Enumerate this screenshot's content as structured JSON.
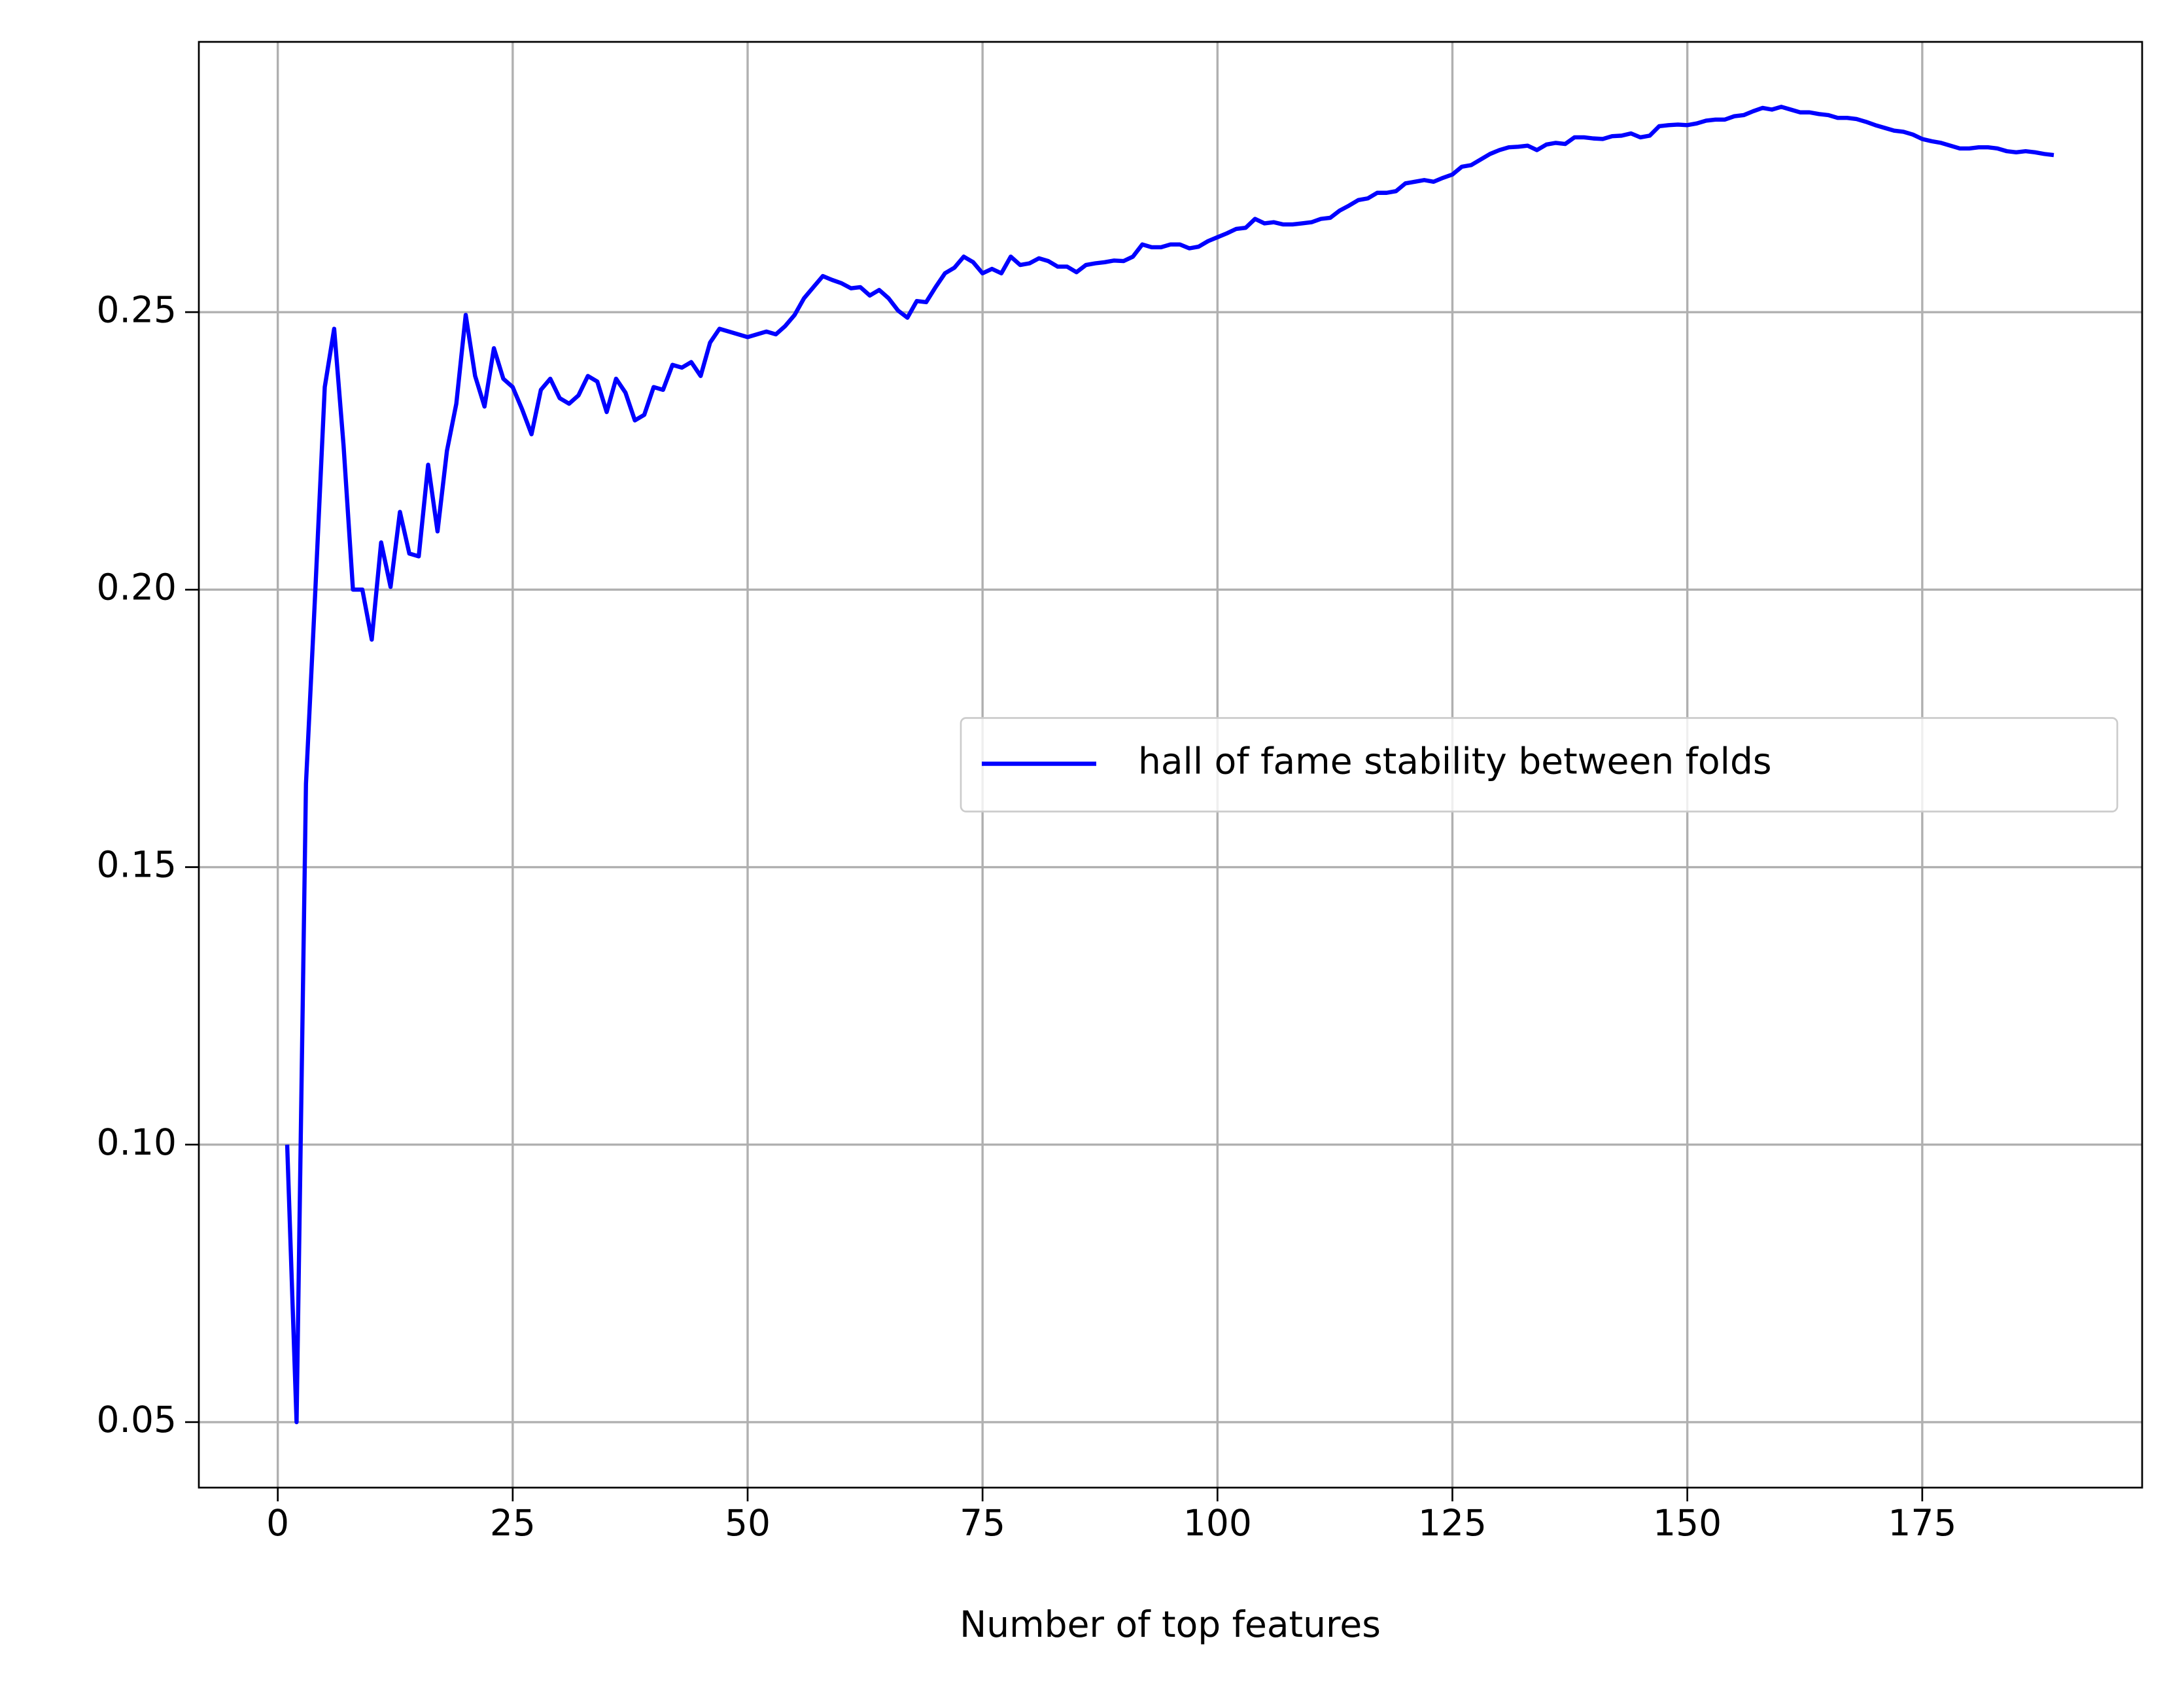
{
  "chart_data": {
    "type": "line",
    "x_label": "Number of top features",
    "x": [
      1,
      2,
      3,
      4,
      5,
      6,
      7,
      8,
      9,
      10,
      11,
      12,
      13,
      14,
      15,
      16,
      17,
      18,
      19,
      20,
      21,
      22,
      23,
      24,
      25,
      26,
      27,
      28,
      29,
      30,
      31,
      32,
      33,
      34,
      35,
      36,
      37,
      38,
      39,
      40,
      41,
      42,
      43,
      44,
      45,
      46,
      47,
      48,
      49,
      50,
      51,
      52,
      53,
      54,
      55,
      56,
      57,
      58,
      59,
      60,
      61,
      62,
      63,
      64,
      65,
      66,
      67,
      68,
      69,
      70,
      71,
      72,
      73,
      74,
      75,
      76,
      77,
      78,
      79,
      80,
      81,
      82,
      83,
      84,
      85,
      86,
      87,
      88,
      89,
      90,
      91,
      92,
      93,
      94,
      95,
      96,
      97,
      98,
      99,
      100,
      101,
      102,
      103,
      104,
      105,
      106,
      107,
      108,
      109,
      110,
      111,
      112,
      113,
      114,
      115,
      116,
      117,
      118,
      119,
      120,
      121,
      122,
      123,
      124,
      125,
      126,
      127,
      128,
      129,
      130,
      131,
      132,
      133,
      134,
      135,
      136,
      137,
      138,
      139,
      140,
      141,
      142,
      143,
      144,
      145,
      146,
      147,
      148,
      149,
      150,
      151,
      152,
      153,
      154,
      155,
      156,
      157,
      158,
      159,
      160,
      161,
      162,
      163,
      164,
      165,
      166,
      167,
      168,
      169,
      170,
      171,
      172,
      173,
      174,
      175,
      176,
      177,
      178,
      179,
      180,
      181,
      182,
      183,
      184,
      185,
      186,
      187,
      188,
      189
    ],
    "series": [
      {
        "name": "hall of fame stability between folds",
        "color": "#0000ff",
        "values": [
          0.1,
          0.05,
          0.165,
          0.2,
          0.2365,
          0.247,
          0.226,
          0.2,
          0.2,
          0.191,
          0.2085,
          0.2005,
          0.214,
          0.2065,
          0.206,
          0.2225,
          0.2105,
          0.225,
          0.2335,
          0.2495,
          0.2385,
          0.233,
          0.2435,
          0.238,
          0.2365,
          0.2325,
          0.228,
          0.236,
          0.238,
          0.2345,
          0.2335,
          0.235,
          0.2385,
          0.2375,
          0.232,
          0.238,
          0.2355,
          0.2305,
          0.2315,
          0.2365,
          0.236,
          0.2405,
          0.24,
          0.241,
          0.2385,
          0.2445,
          0.247,
          0.2465,
          0.246,
          0.2455,
          0.246,
          0.2465,
          0.246,
          0.2475,
          0.2495,
          0.2525,
          0.2545,
          0.2565,
          0.2558,
          0.2552,
          0.2543,
          0.2545,
          0.253,
          0.254,
          0.2525,
          0.2503,
          0.249,
          0.252,
          0.2518,
          0.2545,
          0.257,
          0.258,
          0.26,
          0.259,
          0.257,
          0.2578,
          0.257,
          0.26,
          0.2585,
          0.2588,
          0.2597,
          0.2592,
          0.2582,
          0.2582,
          0.2572,
          0.2585,
          0.2588,
          0.259,
          0.2593,
          0.2592,
          0.26,
          0.2622,
          0.2617,
          0.2617,
          0.2622,
          0.2622,
          0.2615,
          0.2618,
          0.2628,
          0.2635,
          0.2642,
          0.265,
          0.2652,
          0.2668,
          0.266,
          0.2662,
          0.2658,
          0.2658,
          0.266,
          0.2662,
          0.2668,
          0.267,
          0.2683,
          0.2692,
          0.2702,
          0.2705,
          0.2715,
          0.2715,
          0.2718,
          0.2732,
          0.2735,
          0.2738,
          0.2735,
          0.2742,
          0.2748,
          0.2762,
          0.2765,
          0.2775,
          0.2785,
          0.2792,
          0.2797,
          0.2798,
          0.28,
          0.2792,
          0.2802,
          0.2805,
          0.2803,
          0.2815,
          0.2815,
          0.2813,
          0.2812,
          0.2817,
          0.2818,
          0.2822,
          0.2815,
          0.2818,
          0.2835,
          0.2837,
          0.2838,
          0.2837,
          0.284,
          0.2845,
          0.2847,
          0.2847,
          0.2853,
          0.2855,
          0.2862,
          0.2868,
          0.2865,
          0.287,
          0.2865,
          0.286,
          0.286,
          0.2857,
          0.2855,
          0.285,
          0.285,
          0.2848,
          0.2843,
          0.2837,
          0.2832,
          0.2827,
          0.2825,
          0.282,
          0.2812,
          0.2808,
          0.2805,
          0.28,
          0.2795,
          0.2795,
          0.2797,
          0.2797,
          0.2795,
          0.279,
          0.2788,
          0.279,
          0.2788,
          0.2785,
          0.2783
        ]
      }
    ],
    "xlim": [
      -8.4,
      198.4
    ],
    "ylim": [
      0.0382,
      0.2987
    ],
    "xticks": [
      0,
      25,
      50,
      75,
      100,
      125,
      150,
      175
    ],
    "yticks": [
      0.05,
      {
        "value": 0.1,
        "label": "0.10"
      },
      0.15,
      {
        "value": 0.2,
        "label": "0.20"
      },
      0.25
    ],
    "grid": true,
    "legend_loc": "center right"
  }
}
